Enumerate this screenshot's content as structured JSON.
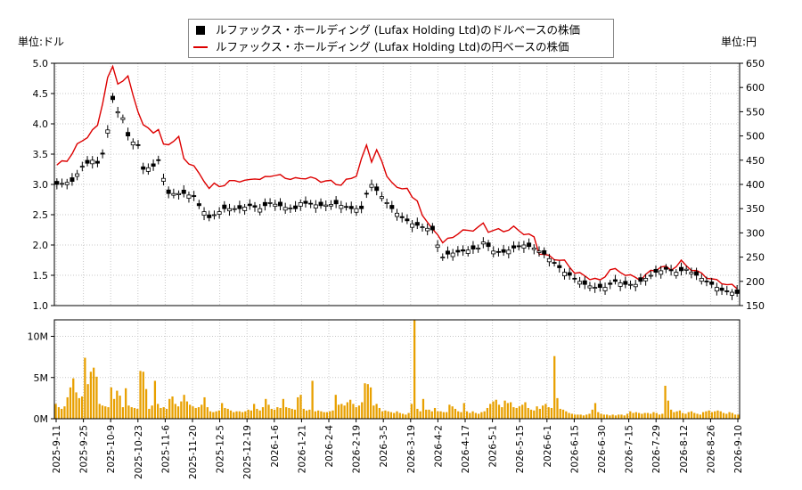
{
  "chart_data": [
    {
      "type": "candlestick",
      "legend": [
        {
          "name": "ルファックス・ホールディング (Lufax Holding Ltd)のドルベースの株価",
          "color": "#000000",
          "marker": "square"
        },
        {
          "name": "ルファックス・ホールディング (Lufax Holding Ltd)の円ベースの株価",
          "color": "#dd0000",
          "marker": "line"
        }
      ],
      "legend_position": "top-center",
      "y_left_label": "単位:ドル",
      "y_right_label": "単位:円",
      "y_left_ticks": [
        "5.0",
        "4.5",
        "4.0",
        "3.5",
        "3.0",
        "2.5",
        "2.0",
        "1.5",
        "1.0"
      ],
      "y_right_ticks": [
        "650",
        "600",
        "550",
        "500",
        "450",
        "400",
        "350",
        "300",
        "250",
        "200",
        "150"
      ],
      "ylim_left": [
        1.0,
        5.0
      ],
      "ylim_right": [
        150,
        650
      ],
      "grid": true,
      "x_ticks": [
        "2025-9-11",
        "2025-9-25",
        "2025-10-9",
        "2025-10-23",
        "2025-11-6",
        "2025-11-20",
        "2025-12-5",
        "2025-12-19",
        "2026-1-6",
        "2026-1-21",
        "2026-2-4",
        "2026-2-19",
        "2026-3-5",
        "2026-3-19",
        "2026-4-2",
        "2026-4-17",
        "2026-5-1",
        "2026-5-15",
        "2026-6-1",
        "2026-6-15",
        "2026-6-30",
        "2026-7-15",
        "2026-7-29",
        "2026-8-12",
        "2026-8-26",
        "2026-9-10"
      ],
      "usd_anchors": [
        [
          0,
          3.0
        ],
        [
          3,
          3.05
        ],
        [
          5,
          3.3
        ],
        [
          7,
          3.4
        ],
        [
          8,
          3.35
        ],
        [
          9,
          3.5
        ],
        [
          10,
          3.9
        ],
        [
          11,
          4.4
        ],
        [
          12,
          4.2
        ],
        [
          13,
          4.1
        ],
        [
          14,
          3.8
        ],
        [
          15,
          3.7
        ],
        [
          16,
          3.65
        ],
        [
          17,
          3.25
        ],
        [
          19,
          3.3
        ],
        [
          20,
          3.4
        ],
        [
          21,
          3.1
        ],
        [
          22,
          2.85
        ],
        [
          25,
          2.85
        ],
        [
          27,
          2.8
        ],
        [
          28,
          2.65
        ],
        [
          29,
          2.55
        ],
        [
          30,
          2.45
        ],
        [
          31,
          2.5
        ],
        [
          33,
          2.6
        ],
        [
          36,
          2.6
        ],
        [
          38,
          2.65
        ],
        [
          40,
          2.6
        ],
        [
          42,
          2.7
        ],
        [
          45,
          2.62
        ],
        [
          47,
          2.6
        ],
        [
          48,
          2.7
        ],
        [
          52,
          2.65
        ],
        [
          55,
          2.68
        ],
        [
          58,
          2.6
        ],
        [
          60,
          2.6
        ],
        [
          61,
          2.85
        ],
        [
          62,
          3.0
        ],
        [
          64,
          2.8
        ],
        [
          66,
          2.6
        ],
        [
          68,
          2.45
        ],
        [
          70,
          2.35
        ],
        [
          72,
          2.3
        ],
        [
          74,
          2.25
        ],
        [
          75,
          2.0
        ],
        [
          76,
          1.8
        ],
        [
          77,
          1.85
        ],
        [
          80,
          1.9
        ],
        [
          83,
          1.95
        ],
        [
          84,
          2.05
        ],
        [
          86,
          1.9
        ],
        [
          88,
          1.88
        ],
        [
          90,
          1.95
        ],
        [
          92,
          2.0
        ],
        [
          94,
          1.95
        ],
        [
          96,
          1.85
        ],
        [
          98,
          1.7
        ],
        [
          100,
          1.55
        ],
        [
          102,
          1.45
        ],
        [
          104,
          1.35
        ],
        [
          106,
          1.3
        ],
        [
          108,
          1.3
        ],
        [
          110,
          1.4
        ],
        [
          112,
          1.35
        ],
        [
          114,
          1.35
        ],
        [
          116,
          1.45
        ],
        [
          118,
          1.55
        ],
        [
          120,
          1.6
        ],
        [
          122,
          1.55
        ],
        [
          124,
          1.6
        ],
        [
          125,
          1.55
        ],
        [
          127,
          1.45
        ],
        [
          129,
          1.35
        ],
        [
          131,
          1.25
        ],
        [
          133,
          1.22
        ],
        [
          134,
          1.2
        ]
      ],
      "jpy_anchors": [
        [
          0,
          440
        ],
        [
          2,
          450
        ],
        [
          4,
          480
        ],
        [
          6,
          500
        ],
        [
          8,
          520
        ],
        [
          10,
          620
        ],
        [
          11,
          640
        ],
        [
          12,
          610
        ],
        [
          14,
          620
        ],
        [
          15,
          585
        ],
        [
          17,
          520
        ],
        [
          19,
          510
        ],
        [
          20,
          512
        ],
        [
          21,
          480
        ],
        [
          22,
          485
        ],
        [
          24,
          495
        ],
        [
          25,
          455
        ],
        [
          26,
          445
        ],
        [
          27,
          435
        ],
        [
          29,
          410
        ],
        [
          30,
          390
        ],
        [
          31,
          400
        ],
        [
          33,
          398
        ],
        [
          35,
          410
        ],
        [
          37,
          405
        ],
        [
          39,
          415
        ],
        [
          40,
          408
        ],
        [
          42,
          420
        ],
        [
          45,
          415
        ],
        [
          47,
          410
        ],
        [
          49,
          415
        ],
        [
          51,
          410
        ],
        [
          54,
          405
        ],
        [
          56,
          400
        ],
        [
          59,
          420
        ],
        [
          61,
          480
        ],
        [
          62,
          450
        ],
        [
          63,
          470
        ],
        [
          65,
          420
        ],
        [
          67,
          390
        ],
        [
          69,
          395
        ],
        [
          70,
          370
        ],
        [
          71,
          365
        ],
        [
          72,
          340
        ],
        [
          73,
          320
        ],
        [
          74,
          305
        ],
        [
          75,
          300
        ],
        [
          76,
          280
        ],
        [
          77,
          285
        ],
        [
          79,
          300
        ],
        [
          81,
          305
        ],
        [
          83,
          310
        ],
        [
          84,
          318
        ],
        [
          85,
          305
        ],
        [
          88,
          305
        ],
        [
          90,
          310
        ],
        [
          92,
          300
        ],
        [
          94,
          290
        ],
        [
          95,
          260
        ],
        [
          97,
          250
        ],
        [
          99,
          245
        ],
        [
          100,
          240
        ],
        [
          102,
          220
        ],
        [
          104,
          210
        ],
        [
          106,
          205
        ],
        [
          107,
          200
        ],
        [
          109,
          225
        ],
        [
          111,
          220
        ],
        [
          113,
          210
        ],
        [
          115,
          205
        ],
        [
          117,
          220
        ],
        [
          119,
          230
        ],
        [
          121,
          225
        ],
        [
          123,
          240
        ],
        [
          124,
          232
        ],
        [
          126,
          220
        ],
        [
          128,
          210
        ],
        [
          130,
          200
        ],
        [
          132,
          195
        ],
        [
          134,
          185
        ]
      ]
    },
    {
      "type": "bar",
      "series_name": "volume",
      "color": "#e8a000",
      "y_ticks": [
        "10M",
        "5M",
        "0M"
      ],
      "ylim": [
        0,
        12000000
      ],
      "values": [
        1800000,
        1400000,
        1200000,
        1500000,
        2600000,
        3800000,
        4900000,
        3200000,
        2500000,
        2700000,
        7400000,
        4200000,
        5700000,
        6200000,
        5100000,
        1800000,
        1600000,
        1500000,
        1400000,
        3800000,
        2400000,
        3400000,
        2800000,
        1400000,
        3700000,
        1600000,
        1400000,
        1300000,
        1200000,
        5800000,
        5700000,
        3600000,
        1200000,
        1600000,
        4600000,
        1800000,
        1300000,
        1400000,
        1200000,
        2400000,
        2700000,
        1800000,
        1500000,
        2100000,
        2900000,
        2100000,
        1700000,
        1500000,
        1300000,
        1400000,
        1700000,
        2600000,
        1400000,
        900000,
        800000,
        900000,
        1000000,
        1900000,
        1300000,
        1200000,
        1000000,
        800000,
        900000,
        900000,
        800000,
        900000,
        1100000,
        1000000,
        1800000,
        1200000,
        1000000,
        1400000,
        2400000,
        1700000,
        1200000,
        1100000,
        1400000,
        1300000,
        2400000,
        1400000,
        1300000,
        1200000,
        1100000,
        2600000,
        2900000,
        1200000,
        1000000,
        1100000,
        4600000,
        900000,
        1000000,
        900000,
        800000,
        800000,
        900000,
        1000000,
        2900000,
        1700000,
        1800000,
        1600000,
        2000000,
        2300000,
        1800000,
        1400000,
        1600000,
        2000000,
        4300000,
        4200000,
        3800000,
        1600000,
        1800000,
        1300000,
        900000,
        1000000,
        900000,
        800000,
        700000,
        900000,
        700000,
        600000,
        500000,
        700000,
        1800000,
        12000000,
        1200000,
        900000,
        2400000,
        1100000,
        1100000,
        900000,
        1300000,
        900000,
        900000,
        800000,
        800000,
        1700000,
        1500000,
        1200000,
        900000,
        800000,
        1900000,
        900000,
        700000,
        900000,
        700000,
        600000,
        800000,
        900000,
        1300000,
        1800000,
        2100000,
        2300000,
        1700000,
        1400000,
        2200000,
        1900000,
        2000000,
        1400000,
        1300000,
        1500000,
        1700000,
        2000000,
        1300000,
        1100000,
        1000000,
        1500000,
        1200000,
        1600000,
        1800000,
        1400000,
        1300000,
        7600000,
        2500000,
        1200000,
        1100000,
        900000,
        700000,
        600000,
        500000,
        500000,
        500000,
        400000,
        500000,
        600000,
        1100000,
        1900000,
        800000,
        600000,
        500000,
        500000,
        400000,
        500000,
        400000,
        500000,
        500000,
        400000,
        600000,
        900000,
        700000,
        800000,
        700000,
        600000,
        700000,
        700000,
        600000,
        800000,
        700000,
        500000,
        600000,
        4000000,
        2200000,
        1100000,
        800000,
        900000,
        1000000,
        700000,
        600000,
        800000,
        900000,
        700000,
        600000,
        500000,
        800000,
        900000,
        1000000,
        800000,
        900000,
        1000000,
        900000,
        700000,
        600000,
        800000,
        700000,
        500000,
        500000
      ]
    }
  ]
}
